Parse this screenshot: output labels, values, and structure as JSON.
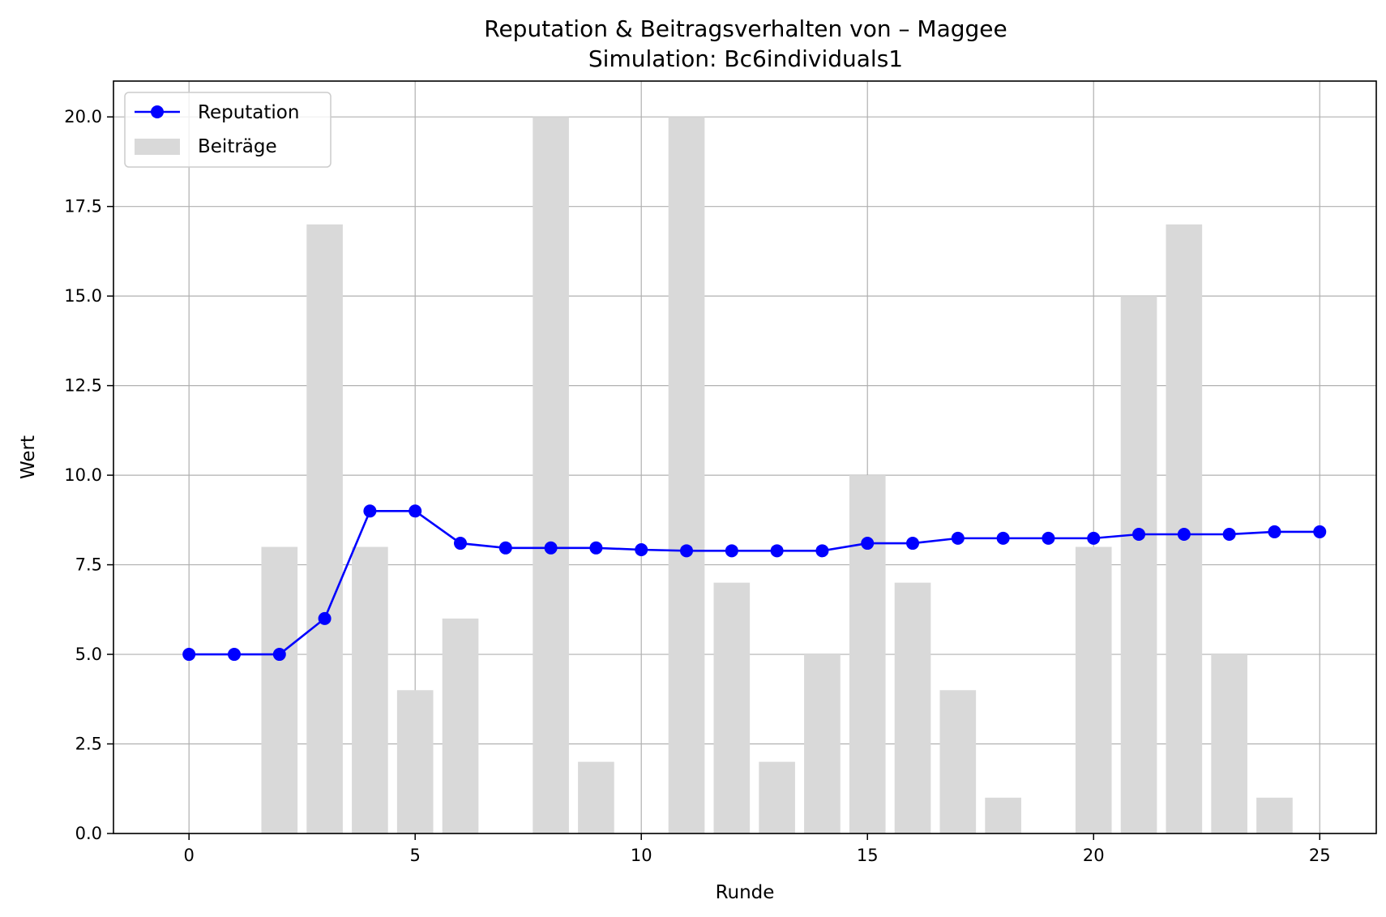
{
  "chart_data": {
    "type": "bar+line",
    "title": "Reputation & Beitragsverhalten von – Maggee",
    "subtitle": "Simulation: Bc6individuals1",
    "xlabel": "Runde",
    "ylabel": "Wert",
    "xlim": [
      -1.67,
      26.25
    ],
    "ylim": [
      0,
      21
    ],
    "xticks": [
      "0",
      "5",
      "10",
      "15",
      "20",
      "25"
    ],
    "yticks": [
      "0.0",
      "2.5",
      "5.0",
      "7.5",
      "10.0",
      "12.5",
      "15.0",
      "17.5",
      "20.0"
    ],
    "grid": true,
    "legend_position": "top-left",
    "x": [
      0,
      1,
      2,
      3,
      4,
      5,
      6,
      7,
      8,
      9,
      10,
      11,
      12,
      13,
      14,
      15,
      16,
      17,
      18,
      19,
      20,
      21,
      22,
      23,
      24,
      25
    ],
    "series": [
      {
        "name": "Reputation",
        "kind": "line",
        "color": "#0000ff",
        "marker": "circle",
        "values": [
          5.0,
          5.0,
          5.0,
          6.0,
          9.0,
          9.0,
          8.1,
          7.97,
          7.97,
          7.97,
          7.92,
          7.89,
          7.89,
          7.89,
          7.89,
          8.1,
          8.1,
          8.24,
          8.24,
          8.24,
          8.24,
          8.35,
          8.35,
          8.35,
          8.42,
          8.42
        ]
      },
      {
        "name": "Beiträge",
        "kind": "bar",
        "color": "#d9d9d9",
        "values": [
          0,
          0,
          8,
          17,
          8,
          4,
          6,
          0,
          20,
          2,
          0,
          20,
          7,
          2,
          5,
          10,
          7,
          4,
          1,
          0,
          8,
          15,
          17,
          5,
          1,
          0
        ]
      }
    ]
  }
}
